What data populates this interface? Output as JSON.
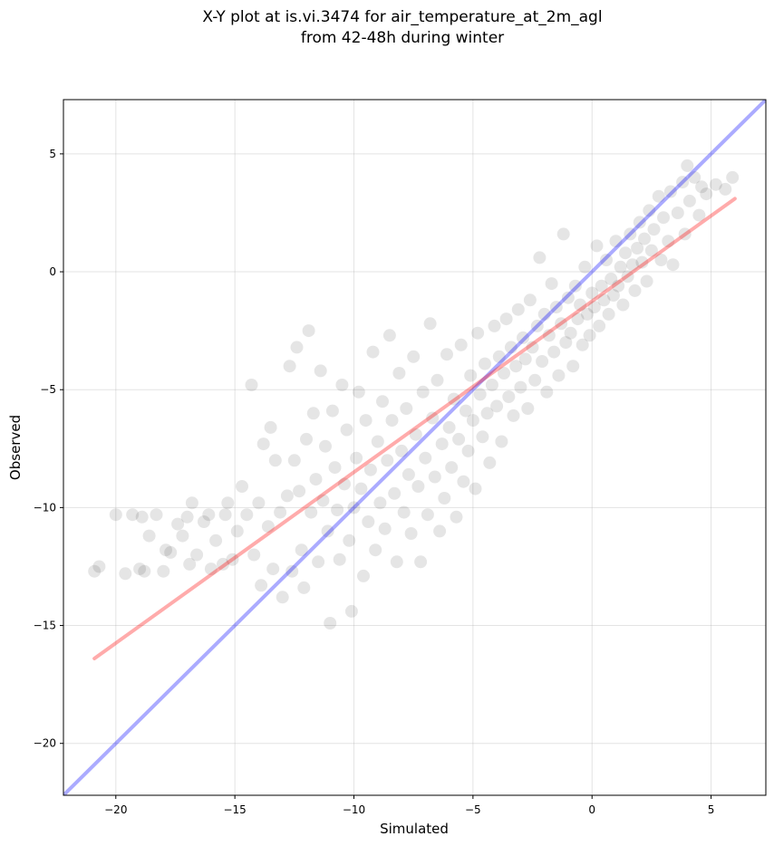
{
  "chart_data": {
    "type": "scatter",
    "title": "X-Y plot at is.vi.3474 for air_temperature_at_2m_agl",
    "subtitle": "from 42-48h during winter",
    "xlabel": "Simulated",
    "ylabel": "Observed",
    "xlim": [
      -22.2,
      7.3
    ],
    "ylim": [
      -22.2,
      7.3
    ],
    "grid": true,
    "xticks": [
      -20,
      -15,
      -10,
      -5,
      0,
      5
    ],
    "yticks": [
      -20,
      -15,
      -10,
      -5,
      0,
      5
    ],
    "xtick_labels": [
      "−20",
      "−15",
      "−10",
      "−5",
      "0",
      "5"
    ],
    "ytick_labels": [
      "−20",
      "−15",
      "−10",
      "−5",
      "0",
      "5"
    ],
    "lines": [
      {
        "kind": "identity",
        "color": "#0000ff",
        "x": [
          -22.2,
          7.3
        ],
        "y": [
          -22.2,
          7.3
        ]
      },
      {
        "kind": "regression",
        "color": "#ff0000",
        "x": [
          -20.9,
          6.0
        ],
        "y": [
          -16.4,
          3.1
        ]
      }
    ],
    "marker_color": "#000000",
    "scatter_points": [
      [
        -20.9,
        -12.7
      ],
      [
        -20.7,
        -12.5
      ],
      [
        -20.0,
        -10.3
      ],
      [
        -19.6,
        -12.8
      ],
      [
        -19.3,
        -10.3
      ],
      [
        -19.0,
        -12.6
      ],
      [
        -18.9,
        -10.4
      ],
      [
        -18.8,
        -12.7
      ],
      [
        -18.6,
        -11.2
      ],
      [
        -18.3,
        -10.3
      ],
      [
        -18.0,
        -12.7
      ],
      [
        -17.9,
        -11.8
      ],
      [
        -17.7,
        -11.9
      ],
      [
        -17.4,
        -10.7
      ],
      [
        -17.2,
        -11.2
      ],
      [
        -17.0,
        -10.4
      ],
      [
        -16.9,
        -12.4
      ],
      [
        -16.8,
        -9.8
      ],
      [
        -16.6,
        -12.0
      ],
      [
        -16.3,
        -10.6
      ],
      [
        -16.1,
        -10.3
      ],
      [
        -16.0,
        -12.6
      ],
      [
        -15.8,
        -11.4
      ],
      [
        -15.5,
        -12.4
      ],
      [
        -15.4,
        -10.3
      ],
      [
        -15.3,
        -9.8
      ],
      [
        -15.1,
        -12.2
      ],
      [
        -14.9,
        -11.0
      ],
      [
        -14.7,
        -9.1
      ],
      [
        -14.5,
        -10.3
      ],
      [
        -14.3,
        -4.8
      ],
      [
        -14.2,
        -12.0
      ],
      [
        -14.0,
        -9.8
      ],
      [
        -13.9,
        -13.3
      ],
      [
        -13.8,
        -7.3
      ],
      [
        -13.6,
        -10.8
      ],
      [
        -13.5,
        -6.6
      ],
      [
        -13.4,
        -12.6
      ],
      [
        -13.3,
        -8.0
      ],
      [
        -13.1,
        -10.2
      ],
      [
        -13.0,
        -13.8
      ],
      [
        -12.8,
        -9.5
      ],
      [
        -12.7,
        -4.0
      ],
      [
        -12.6,
        -12.7
      ],
      [
        -12.5,
        -8.0
      ],
      [
        -12.4,
        -3.2
      ],
      [
        -12.3,
        -9.3
      ],
      [
        -12.2,
        -11.8
      ],
      [
        -12.1,
        -13.4
      ],
      [
        -12.0,
        -7.1
      ],
      [
        -11.9,
        -2.5
      ],
      [
        -11.8,
        -10.2
      ],
      [
        -11.7,
        -6.0
      ],
      [
        -11.6,
        -8.8
      ],
      [
        -11.5,
        -12.3
      ],
      [
        -11.4,
        -4.2
      ],
      [
        -11.3,
        -9.7
      ],
      [
        -11.2,
        -7.4
      ],
      [
        -11.1,
        -11.0
      ],
      [
        -11.0,
        -14.9
      ],
      [
        -10.9,
        -5.9
      ],
      [
        -10.8,
        -8.3
      ],
      [
        -10.7,
        -10.1
      ],
      [
        -10.6,
        -12.2
      ],
      [
        -10.5,
        -4.8
      ],
      [
        -10.4,
        -9.0
      ],
      [
        -10.3,
        -6.7
      ],
      [
        -10.2,
        -11.4
      ],
      [
        -10.1,
        -14.4
      ],
      [
        -10.0,
        -10.0
      ],
      [
        -9.9,
        -7.9
      ],
      [
        -9.8,
        -5.1
      ],
      [
        -9.7,
        -9.2
      ],
      [
        -9.6,
        -12.9
      ],
      [
        -9.5,
        -6.3
      ],
      [
        -9.4,
        -10.6
      ],
      [
        -9.3,
        -8.4
      ],
      [
        -9.2,
        -3.4
      ],
      [
        -9.1,
        -11.8
      ],
      [
        -9.0,
        -7.2
      ],
      [
        -8.9,
        -9.8
      ],
      [
        -8.8,
        -5.5
      ],
      [
        -8.7,
        -10.9
      ],
      [
        -8.6,
        -8.0
      ],
      [
        -8.5,
        -2.7
      ],
      [
        -8.4,
        -6.3
      ],
      [
        -8.3,
        -9.4
      ],
      [
        -8.2,
        -12.3
      ],
      [
        -8.1,
        -4.3
      ],
      [
        -8.0,
        -7.6
      ],
      [
        -7.9,
        -10.2
      ],
      [
        -7.8,
        -5.8
      ],
      [
        -7.7,
        -8.6
      ],
      [
        -7.6,
        -11.1
      ],
      [
        -7.5,
        -3.6
      ],
      [
        -7.4,
        -6.9
      ],
      [
        -7.3,
        -9.1
      ],
      [
        -7.2,
        -12.3
      ],
      [
        -7.1,
        -5.1
      ],
      [
        -7.0,
        -7.9
      ],
      [
        -6.9,
        -10.3
      ],
      [
        -6.8,
        -2.2
      ],
      [
        -6.7,
        -6.2
      ],
      [
        -6.6,
        -8.7
      ],
      [
        -6.5,
        -4.6
      ],
      [
        -6.4,
        -11.0
      ],
      [
        -6.3,
        -7.3
      ],
      [
        -6.2,
        -9.6
      ],
      [
        -6.1,
        -3.5
      ],
      [
        -6.0,
        -6.6
      ],
      [
        -5.9,
        -8.3
      ],
      [
        -5.8,
        -5.4
      ],
      [
        -5.7,
        -10.4
      ],
      [
        -5.6,
        -7.1
      ],
      [
        -5.5,
        -3.1
      ],
      [
        -5.4,
        -8.9
      ],
      [
        -5.3,
        -5.9
      ],
      [
        -5.2,
        -7.6
      ],
      [
        -5.1,
        -4.4
      ],
      [
        -5.0,
        -6.3
      ],
      [
        -4.9,
        -9.2
      ],
      [
        -4.8,
        -2.6
      ],
      [
        -4.7,
        -5.2
      ],
      [
        -4.6,
        -7.0
      ],
      [
        -4.5,
        -3.9
      ],
      [
        -4.4,
        -6.0
      ],
      [
        -4.3,
        -8.1
      ],
      [
        -4.2,
        -4.8
      ],
      [
        -4.1,
        -2.3
      ],
      [
        -4.0,
        -5.7
      ],
      [
        -3.9,
        -3.6
      ],
      [
        -3.8,
        -7.2
      ],
      [
        -3.7,
        -4.3
      ],
      [
        -3.6,
        -2.0
      ],
      [
        -3.5,
        -5.3
      ],
      [
        -3.4,
        -3.2
      ],
      [
        -3.3,
        -6.1
      ],
      [
        -3.2,
        -4.0
      ],
      [
        -3.1,
        -1.6
      ],
      [
        -3.0,
        -4.9
      ],
      [
        -2.9,
        -2.8
      ],
      [
        -2.8,
        -3.7
      ],
      [
        -2.7,
        -5.8
      ],
      [
        -2.6,
        -1.2
      ],
      [
        -2.5,
        -3.2
      ],
      [
        -2.4,
        -4.6
      ],
      [
        -2.3,
        -2.3
      ],
      [
        -2.2,
        0.6
      ],
      [
        -2.1,
        -3.8
      ],
      [
        -2.0,
        -1.8
      ],
      [
        -1.9,
        -5.1
      ],
      [
        -1.8,
        -2.7
      ],
      [
        -1.7,
        -0.5
      ],
      [
        -1.6,
        -3.4
      ],
      [
        -1.5,
        -1.5
      ],
      [
        -1.4,
        -4.4
      ],
      [
        -1.3,
        -2.2
      ],
      [
        -1.2,
        1.6
      ],
      [
        -1.1,
        -3.0
      ],
      [
        -1.0,
        -1.1
      ],
      [
        -0.9,
        -2.6
      ],
      [
        -0.8,
        -4.0
      ],
      [
        -0.7,
        -0.6
      ],
      [
        -0.6,
        -2.0
      ],
      [
        -0.5,
        -1.4
      ],
      [
        -0.4,
        -3.1
      ],
      [
        -0.3,
        0.2
      ],
      [
        -0.2,
        -1.8
      ],
      [
        -0.1,
        -2.7
      ],
      [
        0.0,
        -0.9
      ],
      [
        0.1,
        -1.5
      ],
      [
        0.2,
        1.1
      ],
      [
        0.3,
        -2.3
      ],
      [
        0.4,
        -0.6
      ],
      [
        0.5,
        -1.2
      ],
      [
        0.6,
        0.5
      ],
      [
        0.7,
        -1.8
      ],
      [
        0.8,
        -0.3
      ],
      [
        0.9,
        -1.0
      ],
      [
        1.0,
        1.3
      ],
      [
        1.1,
        -0.6
      ],
      [
        1.2,
        0.2
      ],
      [
        1.3,
        -1.4
      ],
      [
        1.4,
        0.8
      ],
      [
        1.5,
        -0.2
      ],
      [
        1.6,
        1.6
      ],
      [
        1.7,
        0.3
      ],
      [
        1.8,
        -0.8
      ],
      [
        1.9,
        1.0
      ],
      [
        2.0,
        2.1
      ],
      [
        2.1,
        0.4
      ],
      [
        2.2,
        1.4
      ],
      [
        2.3,
        -0.4
      ],
      [
        2.4,
        2.6
      ],
      [
        2.5,
        0.9
      ],
      [
        2.6,
        1.8
      ],
      [
        2.8,
        3.2
      ],
      [
        2.9,
        0.5
      ],
      [
        3.0,
        2.3
      ],
      [
        3.2,
        1.3
      ],
      [
        3.3,
        3.4
      ],
      [
        3.4,
        0.3
      ],
      [
        3.6,
        2.5
      ],
      [
        3.8,
        3.8
      ],
      [
        3.9,
        1.6
      ],
      [
        4.0,
        4.5
      ],
      [
        4.1,
        3.0
      ],
      [
        4.3,
        4.0
      ],
      [
        4.5,
        2.4
      ],
      [
        4.6,
        3.6
      ],
      [
        4.8,
        3.3
      ],
      [
        5.2,
        3.7
      ],
      [
        5.6,
        3.5
      ],
      [
        5.9,
        4.0
      ]
    ]
  }
}
